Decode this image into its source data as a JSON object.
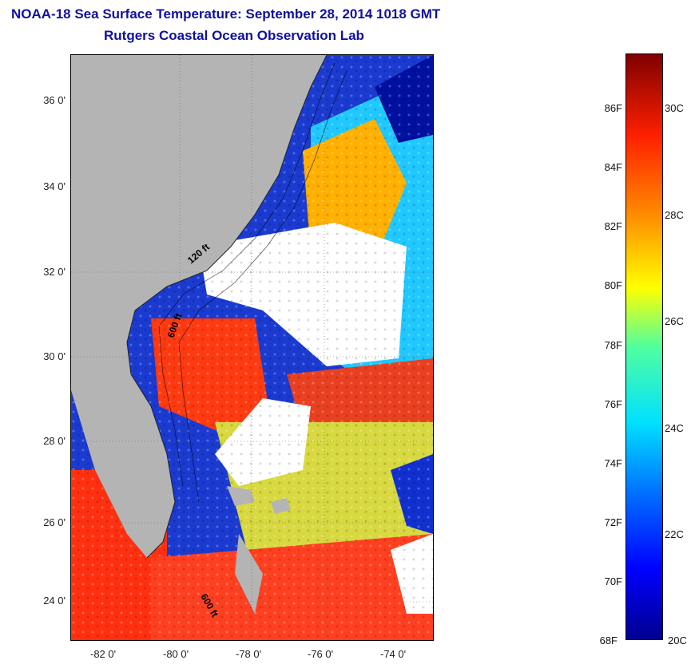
{
  "header": {
    "title": "NOAA-18 Sea Surface Temperature:  September 28, 2014 1018 GMT",
    "subtitle": "Rutgers Coastal Ocean Observation Lab"
  },
  "map": {
    "lat_labels": [
      "36 0'",
      "34 0'",
      "32 0'",
      "30 0'",
      "28 0'",
      "26 0'",
      "24 0'"
    ],
    "lon_labels": [
      "-82 0'",
      "-80 0'",
      "-78 0'",
      "-76 0'",
      "-74 0'"
    ],
    "contour_labels": [
      "120 ft",
      "600 ft",
      "600 ft"
    ],
    "colors": {
      "land": "#b4b4b4",
      "cloud": "#ffffff",
      "cold": "#0000c8",
      "warm": "#ff3000"
    }
  },
  "colorbar": {
    "fahrenheit": [
      "86F",
      "84F",
      "82F",
      "80F",
      "78F",
      "76F",
      "74F",
      "72F",
      "70F",
      "68F"
    ],
    "celsius": [
      "30C",
      "28C",
      "26C",
      "24C",
      "22C",
      "20C"
    ],
    "range_f": [
      68,
      88
    ],
    "range_c": [
      20,
      31
    ]
  }
}
